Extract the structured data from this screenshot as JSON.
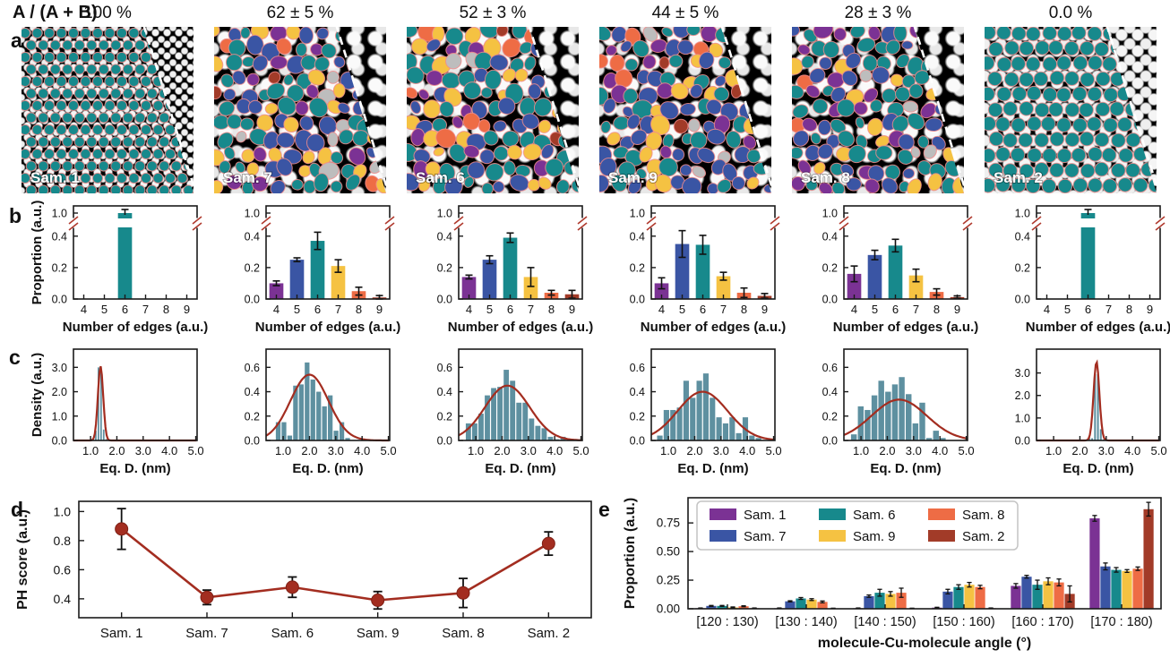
{
  "header": {
    "ratio_label": "A / (A + B)"
  },
  "panel_labels": {
    "a": "a",
    "b": "b",
    "c": "c",
    "d": "d",
    "e": "e"
  },
  "colors": {
    "purple": "#7B3294",
    "blue": "#3A55A4",
    "teal": "#17898C",
    "yellow": "#F5C242",
    "orange": "#EE6C45",
    "red": "#A23B28",
    "gray": "#BDBDBD",
    "hist_bar": "#5E90A0",
    "fit_line": "#A32D20",
    "axis": "#1A1A1A",
    "break_mark": "#B03A2E"
  },
  "samples": [
    {
      "name": "Sam. 1",
      "ratio": "100 %",
      "texture": "fine",
      "blob_style": "uniform-small"
    },
    {
      "name": "Sam. 7",
      "ratio": "62 ± 5 %",
      "texture": "coarse",
      "blob_style": "mixed"
    },
    {
      "name": "Sam. 6",
      "ratio": "52 ± 3 %",
      "texture": "coarse",
      "blob_style": "mixed"
    },
    {
      "name": "Sam. 9",
      "ratio": "44 ± 5 %",
      "texture": "coarse",
      "blob_style": "mixed"
    },
    {
      "name": "Sam. 8",
      "ratio": "28 ± 3 %",
      "texture": "coarse",
      "blob_style": "mixed"
    },
    {
      "name": "Sam. 2",
      "ratio": "0.0 %",
      "texture": "medium",
      "blob_style": "uniform-large"
    }
  ],
  "chart_data": {
    "b_charts": [
      {
        "id": "edge-count-sam-1",
        "sample": "Sam. 1",
        "type": "bar",
        "broken_axis": true,
        "categories": [
          4,
          5,
          6,
          7,
          8,
          9
        ],
        "values": [
          0,
          0,
          0.99,
          0,
          0,
          0
        ],
        "errors": [
          0,
          0,
          0.012,
          0,
          0,
          0
        ],
        "xlabel": "Number of edges (a.u.)",
        "ylabel": "Proportion (a.u.)",
        "show_ylabel": true,
        "yticks_lower": [
          0.0,
          0.2,
          0.4
        ],
        "ytick_upper": 1.0
      },
      {
        "id": "edge-count-sam-7",
        "sample": "Sam. 7",
        "type": "bar",
        "broken_axis": true,
        "categories": [
          4,
          5,
          6,
          7,
          8,
          9
        ],
        "values": [
          0.1,
          0.25,
          0.37,
          0.21,
          0.05,
          0.01
        ],
        "errors": [
          0.015,
          0.012,
          0.055,
          0.04,
          0.025,
          0.012
        ],
        "xlabel": "Number of edges (a.u.)",
        "ylabel": "Proportion (a.u.)",
        "show_ylabel": false,
        "yticks_lower": [
          0.0,
          0.2,
          0.4
        ],
        "ytick_upper": 1.0
      },
      {
        "id": "edge-count-sam-6",
        "sample": "Sam. 6",
        "type": "bar",
        "broken_axis": true,
        "categories": [
          4,
          5,
          6,
          7,
          8,
          9
        ],
        "values": [
          0.14,
          0.25,
          0.39,
          0.14,
          0.04,
          0.03
        ],
        "errors": [
          0.012,
          0.025,
          0.03,
          0.06,
          0.015,
          0.025
        ],
        "xlabel": "Number of edges (a.u.)",
        "ylabel": "Proportion (a.u.)",
        "show_ylabel": false,
        "yticks_lower": [
          0.0,
          0.2,
          0.4
        ],
        "ytick_upper": 1.0
      },
      {
        "id": "edge-count-sam-9",
        "sample": "Sam. 9",
        "type": "bar",
        "broken_axis": true,
        "categories": [
          4,
          5,
          6,
          7,
          8,
          9
        ],
        "values": [
          0.1,
          0.35,
          0.345,
          0.145,
          0.04,
          0.02
        ],
        "errors": [
          0.035,
          0.085,
          0.06,
          0.025,
          0.03,
          0.015
        ],
        "xlabel": "Number of edges (a.u.)",
        "ylabel": "Proportion (a.u.)",
        "show_ylabel": false,
        "yticks_lower": [
          0.0,
          0.2,
          0.4
        ],
        "ytick_upper": 1.0
      },
      {
        "id": "edge-count-sam-8",
        "sample": "Sam. 8",
        "type": "bar",
        "broken_axis": true,
        "categories": [
          4,
          5,
          6,
          7,
          8,
          9
        ],
        "values": [
          0.16,
          0.28,
          0.34,
          0.15,
          0.045,
          0.012
        ],
        "errors": [
          0.05,
          0.03,
          0.04,
          0.04,
          0.02,
          0.008
        ],
        "xlabel": "Number of edges (a.u.)",
        "ylabel": "Proportion (a.u.)",
        "show_ylabel": false,
        "yticks_lower": [
          0.0,
          0.2,
          0.4
        ],
        "ytick_upper": 1.0
      },
      {
        "id": "edge-count-sam-2",
        "sample": "Sam. 2",
        "type": "bar",
        "broken_axis": true,
        "categories": [
          4,
          5,
          6,
          7,
          8,
          9
        ],
        "values": [
          0,
          0,
          0.99,
          0,
          0,
          0
        ],
        "errors": [
          0,
          0,
          0.012,
          0,
          0,
          0
        ],
        "xlabel": "Number of edges (a.u.)",
        "ylabel": "Proportion (a.u.)",
        "show_ylabel": false,
        "yticks_lower": [
          0.0,
          0.2,
          0.4
        ],
        "ytick_upper": 1.0
      }
    ],
    "c_charts": [
      {
        "id": "diameter-hist-sam-1",
        "sample": "Sam. 1",
        "type": "histogram",
        "xlabel": "Eq. D. (nm)",
        "ylabel": "Density (a.u.)",
        "show_ylabel": true,
        "xlim": [
          0.35,
          5.05
        ],
        "xticks": [
          1.0,
          2.0,
          3.0,
          4.0,
          5.0
        ],
        "ymax": 3.6,
        "yticks": [
          0.0,
          1.0,
          2.0,
          3.0
        ],
        "ytick_decimals": 1,
        "bins": {
          "start": 1.05,
          "width": 0.1,
          "values": [
            0.05,
            0.4,
            3.0,
            3.0,
            0.45,
            0.05
          ]
        },
        "fit": {
          "mu": 1.38,
          "sigma": 0.1,
          "peak": 3.05
        }
      },
      {
        "id": "diameter-hist-sam-7",
        "sample": "Sam. 7",
        "type": "histogram",
        "xlabel": "Eq. D. (nm)",
        "ylabel": "Density (a.u.)",
        "show_ylabel": false,
        "xlim": [
          0.35,
          5.05
        ],
        "xticks": [
          1.0,
          2.0,
          3.0,
          4.0,
          5.0
        ],
        "ymax": 0.72,
        "yticks": [
          0.0,
          0.2,
          0.4,
          0.6
        ],
        "ytick_decimals": 1,
        "bins": {
          "start": 0.7,
          "width": 0.22,
          "values": [
            0.15,
            0.15,
            0.04,
            0.45,
            0.46,
            0.64,
            0.5,
            0.4,
            0.28,
            0.37,
            0.08,
            0.15,
            0.02
          ]
        },
        "fit": {
          "mu": 2.0,
          "sigma": 0.72,
          "peak": 0.54
        }
      },
      {
        "id": "diameter-hist-sam-6",
        "sample": "Sam. 6",
        "type": "histogram",
        "xlabel": "Eq. D. (nm)",
        "ylabel": "Density (a.u.)",
        "show_ylabel": false,
        "xlim": [
          0.35,
          5.05
        ],
        "xticks": [
          1.0,
          2.0,
          3.0,
          4.0,
          5.0
        ],
        "ymax": 0.72,
        "yticks": [
          0.0,
          0.2,
          0.4,
          0.6
        ],
        "ytick_decimals": 1,
        "bins": {
          "start": 0.6,
          "width": 0.24,
          "values": [
            0.14,
            0.14,
            0.22,
            0.37,
            0.43,
            0.44,
            0.58,
            0.49,
            0.31,
            0.31,
            0.18,
            0.12,
            0.1,
            0.03,
            0.01,
            0.03
          ]
        },
        "fit": {
          "mu": 2.2,
          "sigma": 0.85,
          "peak": 0.45
        }
      },
      {
        "id": "diameter-hist-sam-9",
        "sample": "Sam. 9",
        "type": "histogram",
        "xlabel": "Eq. D. (nm)",
        "ylabel": "Density (a.u.)",
        "show_ylabel": false,
        "xlim": [
          0.35,
          5.05
        ],
        "xticks": [
          1.0,
          2.0,
          3.0,
          4.0,
          5.0
        ],
        "ymax": 0.72,
        "yticks": [
          0.0,
          0.2,
          0.4,
          0.6
        ],
        "ytick_decimals": 1,
        "bins": {
          "start": 0.55,
          "width": 0.25,
          "values": [
            0.04,
            0.25,
            0.25,
            0.27,
            0.49,
            0.35,
            0.49,
            0.55,
            0.35,
            0.19,
            0.14,
            0.19,
            0.06,
            0.19,
            0.04,
            0.02
          ]
        },
        "fit": {
          "mu": 2.3,
          "sigma": 0.95,
          "peak": 0.4
        }
      },
      {
        "id": "diameter-hist-sam-8",
        "sample": "Sam. 8",
        "type": "histogram",
        "xlabel": "Eq. D. (nm)",
        "ylabel": "Density (a.u.)",
        "show_ylabel": false,
        "xlim": [
          0.35,
          5.05
        ],
        "xticks": [
          1.0,
          2.0,
          3.0,
          4.0,
          5.0
        ],
        "ymax": 0.72,
        "yticks": [
          0.0,
          0.2,
          0.4,
          0.6
        ],
        "ytick_decimals": 1,
        "bins": {
          "start": 0.6,
          "width": 0.26,
          "values": [
            0.05,
            0.28,
            0.25,
            0.37,
            0.49,
            0.4,
            0.46,
            0.52,
            0.38,
            0.14,
            0.31,
            0.02,
            0.08,
            0.02
          ]
        },
        "fit": {
          "mu": 2.45,
          "sigma": 1.05,
          "peak": 0.335
        }
      },
      {
        "id": "diameter-hist-sam-2",
        "sample": "Sam. 2",
        "type": "histogram",
        "xlabel": "Eq. D. (nm)",
        "ylabel": "Density (a.u.)",
        "show_ylabel": false,
        "xlim": [
          0.35,
          5.05
        ],
        "xticks": [
          1.0,
          2.0,
          3.0,
          4.0,
          5.0
        ],
        "ymax": 3.9,
        "yticks": [
          0.0,
          1.0,
          2.0,
          3.0
        ],
        "ytick_decimals": 1,
        "bins": {
          "start": 2.3,
          "width": 0.11,
          "values": [
            0.15,
            0.1,
            2.95,
            2.95,
            0.5,
            0.05
          ]
        },
        "fit": {
          "mu": 2.63,
          "sigma": 0.11,
          "peak": 3.5
        }
      }
    ],
    "d_chart": {
      "id": "ph-score",
      "type": "line",
      "categories": [
        "Sam. 1",
        "Sam. 7",
        "Sam. 6",
        "Sam. 9",
        "Sam. 8",
        "Sam. 2"
      ],
      "values": [
        0.88,
        0.41,
        0.48,
        0.39,
        0.44,
        0.78
      ],
      "errors": [
        0.14,
        0.05,
        0.07,
        0.06,
        0.1,
        0.08
      ],
      "ylabel": "PH score (a.u.)",
      "yticks": [
        0.4,
        0.6,
        0.8,
        1.0
      ],
      "ylim": [
        0.27,
        1.07
      ]
    },
    "e_chart": {
      "id": "angle-distribution",
      "type": "grouped-bar",
      "categories": [
        "[120 : 130)",
        "[130 : 140)",
        "[140 : 150)",
        "[150 : 160)",
        "[160 : 170)",
        "[170 : 180)"
      ],
      "series": [
        {
          "name": "Sam. 1",
          "color_key": "purple",
          "values": [
            0.005,
            0.005,
            0.005,
            0.01,
            0.2,
            0.79
          ],
          "errors": [
            0.002,
            0.002,
            0.002,
            0.003,
            0.02,
            0.025
          ]
        },
        {
          "name": "Sam. 7",
          "color_key": "blue",
          "values": [
            0.025,
            0.065,
            0.11,
            0.15,
            0.28,
            0.37
          ],
          "errors": [
            0.004,
            0.005,
            0.01,
            0.02,
            0.012,
            0.03
          ]
        },
        {
          "name": "Sam. 6",
          "color_key": "teal",
          "values": [
            0.025,
            0.09,
            0.14,
            0.19,
            0.21,
            0.34
          ],
          "errors": [
            0.004,
            0.008,
            0.03,
            0.02,
            0.04,
            0.02
          ]
        },
        {
          "name": "Sam. 9",
          "color_key": "yellow",
          "values": [
            0.012,
            0.08,
            0.13,
            0.21,
            0.24,
            0.33
          ],
          "errors": [
            0.004,
            0.008,
            0.02,
            0.02,
            0.03,
            0.012
          ]
        },
        {
          "name": "Sam. 8",
          "color_key": "orange",
          "values": [
            0.022,
            0.06,
            0.14,
            0.19,
            0.23,
            0.35
          ],
          "errors": [
            0.004,
            0.008,
            0.04,
            0.015,
            0.03,
            0.015
          ]
        },
        {
          "name": "Sam. 2",
          "color_key": "red",
          "values": [
            0.005,
            0.003,
            0.003,
            0.005,
            0.13,
            0.87
          ],
          "errors": [
            0.002,
            0.002,
            0.002,
            0.002,
            0.07,
            0.06
          ]
        }
      ],
      "ylabel": "Proportion (a.u.)",
      "xlabel": "molecule-Cu-molecule angle (°)",
      "yticks": [
        0.0,
        0.25,
        0.5,
        0.75
      ],
      "ylim": [
        0,
        0.97
      ],
      "legend_columns": [
        [
          "Sam. 1",
          "Sam. 7"
        ],
        [
          "Sam. 6",
          "Sam. 9"
        ],
        [
          "Sam. 8",
          "Sam. 2"
        ]
      ]
    }
  }
}
